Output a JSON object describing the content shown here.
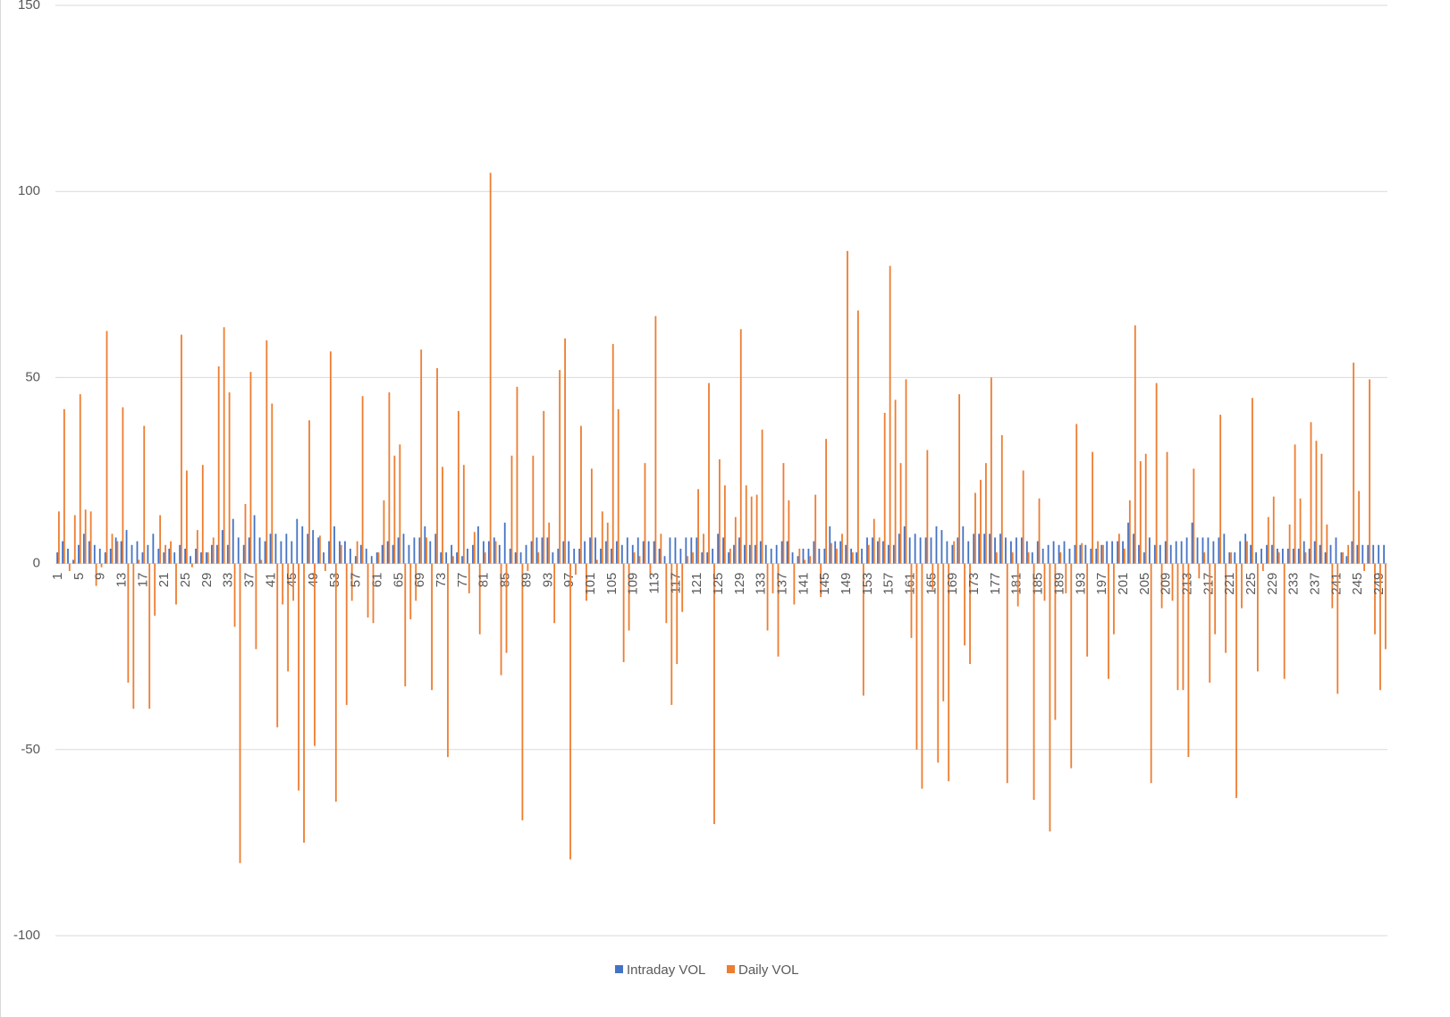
{
  "chart_data": {
    "type": "bar",
    "categories": [
      1,
      null,
      null,
      null,
      5,
      null,
      null,
      null,
      9,
      null,
      null,
      null,
      13,
      null,
      null,
      null,
      17,
      null,
      null,
      null,
      21,
      null,
      null,
      null,
      25,
      null,
      null,
      null,
      29,
      null,
      null,
      null,
      33,
      null,
      null,
      null,
      37,
      null,
      null,
      null,
      41,
      null,
      null,
      null,
      45,
      null,
      null,
      null,
      49,
      null,
      null,
      null,
      53,
      null,
      null,
      null,
      57,
      null,
      null,
      null,
      61,
      null,
      null,
      null,
      65,
      null,
      null,
      null,
      69,
      null,
      null,
      null,
      73,
      null,
      null,
      null,
      77,
      null,
      null,
      null,
      81,
      null,
      null,
      null,
      85,
      null,
      null,
      null,
      89,
      null,
      null,
      null,
      93,
      null,
      null,
      null,
      97,
      null,
      null,
      null,
      101,
      null,
      null,
      null,
      105,
      null,
      null,
      null,
      109,
      null,
      null,
      null,
      113,
      null,
      null,
      null,
      117,
      null,
      null,
      null,
      121,
      null,
      null,
      null,
      125,
      null,
      null,
      null,
      129,
      null,
      null,
      null,
      133,
      null,
      null,
      null,
      137,
      null,
      null,
      null,
      141,
      null,
      null,
      null,
      145,
      null,
      null,
      null,
      149,
      null,
      null,
      null,
      153,
      null,
      null,
      null,
      157,
      null,
      null,
      null,
      161,
      null,
      null,
      null,
      165,
      null,
      null,
      null,
      169,
      null,
      null,
      null,
      173,
      null,
      null,
      null,
      177,
      null,
      null,
      null,
      181,
      null,
      null,
      null,
      185,
      null,
      null,
      null,
      189,
      null,
      null,
      null,
      193,
      null,
      null,
      null,
      197,
      null,
      null,
      null,
      201,
      null,
      null,
      null,
      205,
      null,
      null,
      null,
      209,
      null,
      null,
      null,
      213,
      null,
      null,
      null,
      217,
      null,
      null,
      null,
      221,
      null,
      null,
      null,
      225,
      null,
      null,
      null,
      229,
      null,
      null,
      null,
      233,
      null,
      null,
      null,
      237,
      null,
      null,
      null,
      241,
      null,
      null,
      null,
      245,
      null,
      null,
      null,
      249,
      null
    ],
    "series": [
      {
        "name": "Intraday VOL",
        "color": "#4472c4",
        "values": [
          3,
          6,
          4,
          1,
          5,
          8,
          6,
          5,
          4,
          3,
          4,
          7,
          6,
          9,
          5,
          6,
          3,
          5,
          8,
          4,
          3,
          4,
          3,
          5,
          4,
          2,
          4,
          3,
          3,
          5,
          5,
          9,
          5,
          12,
          7,
          5,
          7,
          13,
          7,
          6,
          8,
          8,
          6,
          8,
          6,
          12,
          10,
          8,
          9,
          7,
          3,
          6,
          10,
          6,
          6,
          4,
          2,
          5,
          4,
          2,
          3,
          5,
          6,
          5,
          7,
          8,
          5,
          7,
          7,
          10,
          6,
          8,
          3,
          3,
          5,
          3,
          2,
          4,
          5,
          10,
          6,
          6,
          7,
          5,
          11,
          4,
          3,
          3,
          5,
          6,
          7,
          7,
          7,
          3,
          4,
          6,
          6,
          4,
          4,
          6,
          7,
          7,
          4,
          6,
          4,
          6,
          5,
          7,
          5,
          7,
          6,
          6,
          6,
          4,
          2,
          7,
          7,
          4,
          7,
          7,
          7,
          3,
          3,
          4,
          8,
          7,
          3,
          5,
          7,
          5,
          5,
          5,
          6,
          5,
          4,
          5,
          6,
          6,
          3,
          2,
          4,
          4,
          6,
          4,
          4,
          10,
          6,
          6,
          5,
          4,
          3,
          4,
          7,
          7,
          6,
          6,
          5,
          5,
          8,
          10,
          7,
          8,
          7,
          7,
          7,
          10,
          9,
          6,
          5,
          7,
          10,
          6,
          8,
          8,
          8,
          8,
          7,
          8,
          7,
          6,
          7,
          7,
          6,
          3,
          6,
          4,
          5,
          6,
          5,
          6,
          4,
          5,
          5,
          5,
          4,
          4,
          5,
          6,
          6,
          6,
          6,
          11,
          8,
          5,
          3,
          7,
          5,
          5,
          6,
          5,
          6,
          6,
          7,
          11,
          7,
          7,
          7,
          6,
          7,
          8,
          3,
          3,
          6,
          8,
          5,
          3,
          4,
          5,
          5,
          4,
          4,
          4,
          4,
          4,
          6,
          4,
          6,
          5,
          3,
          5,
          7,
          3,
          2,
          6,
          5,
          5,
          5,
          5,
          5,
          5
        ]
      },
      {
        "name": "Daily VOL",
        "color": "#ed7d31",
        "values": [
          14,
          41.5,
          -2,
          13,
          45.5,
          14.5,
          14,
          -6,
          -1,
          62.5,
          8,
          6,
          42,
          -32,
          -39,
          1,
          37,
          -39,
          -14,
          13,
          5,
          6,
          -11,
          61.5,
          25,
          -1,
          9,
          26.5,
          3,
          7,
          53,
          63.5,
          46,
          -17,
          -80.5,
          16,
          51.5,
          -23,
          1,
          60,
          43,
          -44,
          -11,
          -29,
          -10,
          -61,
          -75,
          38.5,
          -49,
          7.5,
          -2,
          57,
          -64,
          5,
          -38,
          -10,
          6,
          45,
          -14.5,
          -16,
          3,
          17,
          46,
          29,
          32,
          -33,
          -15,
          -10,
          57.5,
          7,
          -34,
          52.5,
          26,
          -52,
          2,
          41,
          26.5,
          -8,
          8.5,
          -19,
          3,
          105,
          6,
          -30,
          -24,
          29,
          47.5,
          -69,
          -2,
          29,
          3,
          41,
          11,
          -16,
          52,
          60.5,
          -79.5,
          -3,
          37,
          -10,
          25.5,
          1,
          14,
          11,
          59,
          41.5,
          -26.5,
          -18,
          3,
          2,
          27,
          -3,
          66.5,
          8,
          -16,
          -38,
          -27,
          -13,
          2,
          3,
          20,
          8,
          48.5,
          -70,
          28,
          21,
          4,
          12.5,
          63,
          21,
          18,
          18.5,
          36,
          -18,
          -8,
          -25,
          27,
          17,
          -11,
          4,
          1,
          2,
          18.5,
          -9,
          33.5,
          5.5,
          4,
          8,
          84,
          3,
          68,
          -35.5,
          5,
          12,
          7,
          40.5,
          80,
          44,
          27,
          49.5,
          -20,
          -50,
          -60.5,
          30.5,
          -7,
          -53.5,
          -37,
          -58.5,
          6,
          45.5,
          -22,
          -27,
          19,
          22.5,
          27,
          50,
          3,
          34.5,
          -59,
          3,
          -11.5,
          25,
          3,
          -63.5,
          17.5,
          -10,
          -72,
          -42,
          3,
          -8,
          -55,
          37.5,
          5.5,
          -25,
          30,
          6,
          5,
          -31,
          -19,
          8,
          4,
          17,
          64,
          27.5,
          29.5,
          -59,
          48.5,
          -12,
          30,
          -10,
          -34,
          -34,
          -52,
          25.5,
          -4,
          3,
          -32,
          -19,
          40,
          -24,
          3,
          -63,
          -12,
          6,
          44.5,
          -29,
          -2,
          12.5,
          18,
          3,
          -31,
          10.5,
          32,
          17.5,
          3,
          38,
          33,
          29.5,
          10.5,
          -12,
          -35,
          3,
          5,
          54,
          19.5,
          -2,
          49.5,
          -19,
          -34,
          -23
        ]
      }
    ],
    "ylim": [
      -100,
      150
    ],
    "yticks": [
      -100,
      -50,
      0,
      50,
      100,
      150
    ],
    "grid": true,
    "legend": "bottom"
  }
}
